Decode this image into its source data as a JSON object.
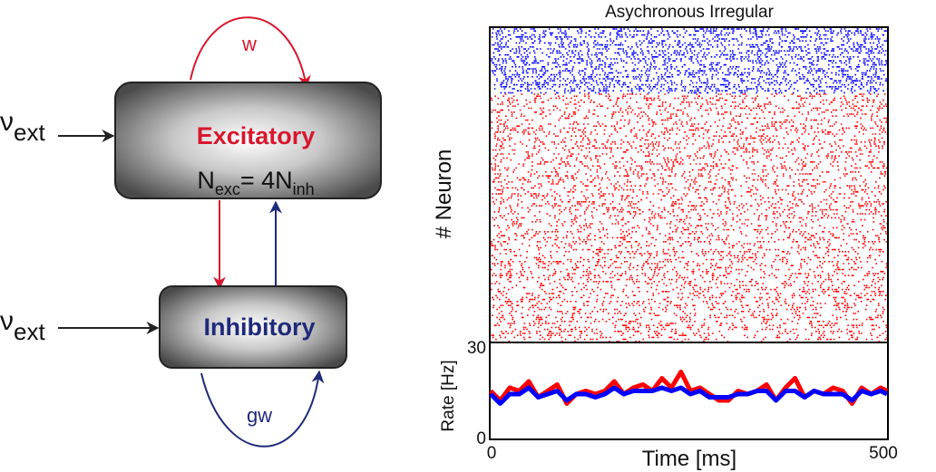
{
  "diagram": {
    "excitatory": {
      "label": "Excitatory",
      "eq_N": "N",
      "eq_sub1": "exc",
      "eq_mid": "= 4N",
      "eq_sub2": "inh"
    },
    "inhibitory": {
      "label": "Inhibitory"
    },
    "input_top": {
      "nu": "ν",
      "sub": "ext"
    },
    "input_bottom": {
      "nu": "ν",
      "sub": "ext"
    },
    "self_loop_exc": "w",
    "self_loop_inh": "gw",
    "colors": {
      "excitatory": "#d7172e",
      "inhibitory": "#1f2a7a",
      "arrow": "#222222"
    }
  },
  "raster": {
    "title": "Asychronous Irregular",
    "ylabel": "# Neuron",
    "exc_color": "#ff0000",
    "inh_color": "#0000ff"
  },
  "chart_data": {
    "type": "line",
    "xlabel": "Time [ms]",
    "ylabel": "Rate [Hz]",
    "xlim": [
      0,
      500
    ],
    "ylim": [
      0,
      30
    ],
    "x_ticks": [
      "0",
      "500"
    ],
    "y_ticks": [
      "0",
      "30"
    ],
    "x": [
      0,
      12,
      24,
      36,
      48,
      60,
      72,
      84,
      96,
      108,
      120,
      132,
      144,
      156,
      168,
      180,
      192,
      204,
      216,
      228,
      240,
      252,
      264,
      276,
      288,
      300,
      312,
      324,
      336,
      348,
      360,
      372,
      384,
      396,
      408,
      420,
      432,
      444,
      456,
      468,
      480,
      492,
      500
    ],
    "series": [
      {
        "color": "#ff0000",
        "values": [
          15,
          12,
          16,
          15,
          18,
          13,
          15,
          17,
          11,
          14,
          15,
          14,
          15,
          18,
          14,
          16,
          17,
          15,
          19,
          16,
          21,
          15,
          16,
          14,
          12,
          12,
          15,
          14,
          15,
          17,
          12,
          16,
          19,
          13,
          15,
          14,
          16,
          15,
          11,
          16,
          14,
          16,
          15
        ]
      },
      {
        "color": "#0000ff",
        "values": [
          14,
          11,
          14,
          14,
          16,
          13,
          14,
          15,
          12,
          14,
          14,
          13,
          14,
          16,
          14,
          15,
          15,
          15,
          16,
          15,
          16,
          14,
          15,
          13,
          13,
          13,
          14,
          14,
          15,
          15,
          12,
          15,
          15,
          13,
          15,
          14,
          14,
          14,
          12,
          15,
          14,
          15,
          14
        ]
      }
    ]
  }
}
